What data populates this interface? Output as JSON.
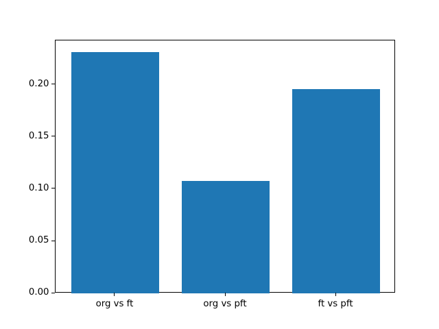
{
  "figure": {
    "background": "#ffffff"
  },
  "chart_data": {
    "type": "bar",
    "title": "",
    "xlabel": "",
    "ylabel": "",
    "categories": [
      "org vs ft",
      "org vs pft",
      "ft vs pft"
    ],
    "values": [
      0.231,
      0.108,
      0.196
    ],
    "bar_color": "#1f77b4",
    "bar_width_fraction": 0.8,
    "xlim": [
      -0.54,
      2.54
    ],
    "ylim": [
      0,
      0.2426
    ],
    "yticks": [
      0,
      0.05,
      0.1,
      0.15,
      0.2
    ],
    "ytick_labels": [
      "0.00",
      "0.05",
      "0.10",
      "0.15",
      "0.20"
    ],
    "grid": false,
    "legend": null,
    "spine_color": "#000000",
    "tick_color": "#000000",
    "text_color": "#000000"
  }
}
